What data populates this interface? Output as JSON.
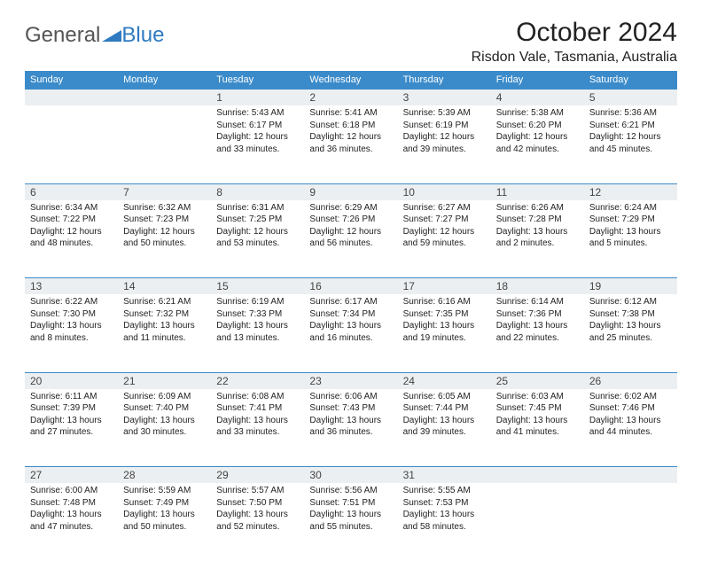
{
  "logo": {
    "text1": "General",
    "text2": "Blue"
  },
  "title": "October 2024",
  "location": "Risdon Vale, Tasmania, Australia",
  "colors": {
    "header_bg": "#3b8bca",
    "header_text": "#ffffff",
    "daynum_bg": "#eceff1",
    "border": "#3b8bca",
    "logo_gray": "#555555",
    "logo_blue": "#2f7ac0"
  },
  "typography": {
    "title_fontsize": 30,
    "location_fontsize": 16,
    "header_fontsize": 11,
    "cell_fontsize": 10,
    "daynum_fontsize": 12
  },
  "columns": [
    "Sunday",
    "Monday",
    "Tuesday",
    "Wednesday",
    "Thursday",
    "Friday",
    "Saturday"
  ],
  "weeks": [
    [
      null,
      null,
      {
        "n": "1",
        "sunrise": "Sunrise: 5:43 AM",
        "sunset": "Sunset: 6:17 PM",
        "d1": "Daylight: 12 hours",
        "d2": "and 33 minutes."
      },
      {
        "n": "2",
        "sunrise": "Sunrise: 5:41 AM",
        "sunset": "Sunset: 6:18 PM",
        "d1": "Daylight: 12 hours",
        "d2": "and 36 minutes."
      },
      {
        "n": "3",
        "sunrise": "Sunrise: 5:39 AM",
        "sunset": "Sunset: 6:19 PM",
        "d1": "Daylight: 12 hours",
        "d2": "and 39 minutes."
      },
      {
        "n": "4",
        "sunrise": "Sunrise: 5:38 AM",
        "sunset": "Sunset: 6:20 PM",
        "d1": "Daylight: 12 hours",
        "d2": "and 42 minutes."
      },
      {
        "n": "5",
        "sunrise": "Sunrise: 5:36 AM",
        "sunset": "Sunset: 6:21 PM",
        "d1": "Daylight: 12 hours",
        "d2": "and 45 minutes."
      }
    ],
    [
      {
        "n": "6",
        "sunrise": "Sunrise: 6:34 AM",
        "sunset": "Sunset: 7:22 PM",
        "d1": "Daylight: 12 hours",
        "d2": "and 48 minutes."
      },
      {
        "n": "7",
        "sunrise": "Sunrise: 6:32 AM",
        "sunset": "Sunset: 7:23 PM",
        "d1": "Daylight: 12 hours",
        "d2": "and 50 minutes."
      },
      {
        "n": "8",
        "sunrise": "Sunrise: 6:31 AM",
        "sunset": "Sunset: 7:25 PM",
        "d1": "Daylight: 12 hours",
        "d2": "and 53 minutes."
      },
      {
        "n": "9",
        "sunrise": "Sunrise: 6:29 AM",
        "sunset": "Sunset: 7:26 PM",
        "d1": "Daylight: 12 hours",
        "d2": "and 56 minutes."
      },
      {
        "n": "10",
        "sunrise": "Sunrise: 6:27 AM",
        "sunset": "Sunset: 7:27 PM",
        "d1": "Daylight: 12 hours",
        "d2": "and 59 minutes."
      },
      {
        "n": "11",
        "sunrise": "Sunrise: 6:26 AM",
        "sunset": "Sunset: 7:28 PM",
        "d1": "Daylight: 13 hours",
        "d2": "and 2 minutes."
      },
      {
        "n": "12",
        "sunrise": "Sunrise: 6:24 AM",
        "sunset": "Sunset: 7:29 PM",
        "d1": "Daylight: 13 hours",
        "d2": "and 5 minutes."
      }
    ],
    [
      {
        "n": "13",
        "sunrise": "Sunrise: 6:22 AM",
        "sunset": "Sunset: 7:30 PM",
        "d1": "Daylight: 13 hours",
        "d2": "and 8 minutes."
      },
      {
        "n": "14",
        "sunrise": "Sunrise: 6:21 AM",
        "sunset": "Sunset: 7:32 PM",
        "d1": "Daylight: 13 hours",
        "d2": "and 11 minutes."
      },
      {
        "n": "15",
        "sunrise": "Sunrise: 6:19 AM",
        "sunset": "Sunset: 7:33 PM",
        "d1": "Daylight: 13 hours",
        "d2": "and 13 minutes."
      },
      {
        "n": "16",
        "sunrise": "Sunrise: 6:17 AM",
        "sunset": "Sunset: 7:34 PM",
        "d1": "Daylight: 13 hours",
        "d2": "and 16 minutes."
      },
      {
        "n": "17",
        "sunrise": "Sunrise: 6:16 AM",
        "sunset": "Sunset: 7:35 PM",
        "d1": "Daylight: 13 hours",
        "d2": "and 19 minutes."
      },
      {
        "n": "18",
        "sunrise": "Sunrise: 6:14 AM",
        "sunset": "Sunset: 7:36 PM",
        "d1": "Daylight: 13 hours",
        "d2": "and 22 minutes."
      },
      {
        "n": "19",
        "sunrise": "Sunrise: 6:12 AM",
        "sunset": "Sunset: 7:38 PM",
        "d1": "Daylight: 13 hours",
        "d2": "and 25 minutes."
      }
    ],
    [
      {
        "n": "20",
        "sunrise": "Sunrise: 6:11 AM",
        "sunset": "Sunset: 7:39 PM",
        "d1": "Daylight: 13 hours",
        "d2": "and 27 minutes."
      },
      {
        "n": "21",
        "sunrise": "Sunrise: 6:09 AM",
        "sunset": "Sunset: 7:40 PM",
        "d1": "Daylight: 13 hours",
        "d2": "and 30 minutes."
      },
      {
        "n": "22",
        "sunrise": "Sunrise: 6:08 AM",
        "sunset": "Sunset: 7:41 PM",
        "d1": "Daylight: 13 hours",
        "d2": "and 33 minutes."
      },
      {
        "n": "23",
        "sunrise": "Sunrise: 6:06 AM",
        "sunset": "Sunset: 7:43 PM",
        "d1": "Daylight: 13 hours",
        "d2": "and 36 minutes."
      },
      {
        "n": "24",
        "sunrise": "Sunrise: 6:05 AM",
        "sunset": "Sunset: 7:44 PM",
        "d1": "Daylight: 13 hours",
        "d2": "and 39 minutes."
      },
      {
        "n": "25",
        "sunrise": "Sunrise: 6:03 AM",
        "sunset": "Sunset: 7:45 PM",
        "d1": "Daylight: 13 hours",
        "d2": "and 41 minutes."
      },
      {
        "n": "26",
        "sunrise": "Sunrise: 6:02 AM",
        "sunset": "Sunset: 7:46 PM",
        "d1": "Daylight: 13 hours",
        "d2": "and 44 minutes."
      }
    ],
    [
      {
        "n": "27",
        "sunrise": "Sunrise: 6:00 AM",
        "sunset": "Sunset: 7:48 PM",
        "d1": "Daylight: 13 hours",
        "d2": "and 47 minutes."
      },
      {
        "n": "28",
        "sunrise": "Sunrise: 5:59 AM",
        "sunset": "Sunset: 7:49 PM",
        "d1": "Daylight: 13 hours",
        "d2": "and 50 minutes."
      },
      {
        "n": "29",
        "sunrise": "Sunrise: 5:57 AM",
        "sunset": "Sunset: 7:50 PM",
        "d1": "Daylight: 13 hours",
        "d2": "and 52 minutes."
      },
      {
        "n": "30",
        "sunrise": "Sunrise: 5:56 AM",
        "sunset": "Sunset: 7:51 PM",
        "d1": "Daylight: 13 hours",
        "d2": "and 55 minutes."
      },
      {
        "n": "31",
        "sunrise": "Sunrise: 5:55 AM",
        "sunset": "Sunset: 7:53 PM",
        "d1": "Daylight: 13 hours",
        "d2": "and 58 minutes."
      },
      null,
      null
    ]
  ]
}
